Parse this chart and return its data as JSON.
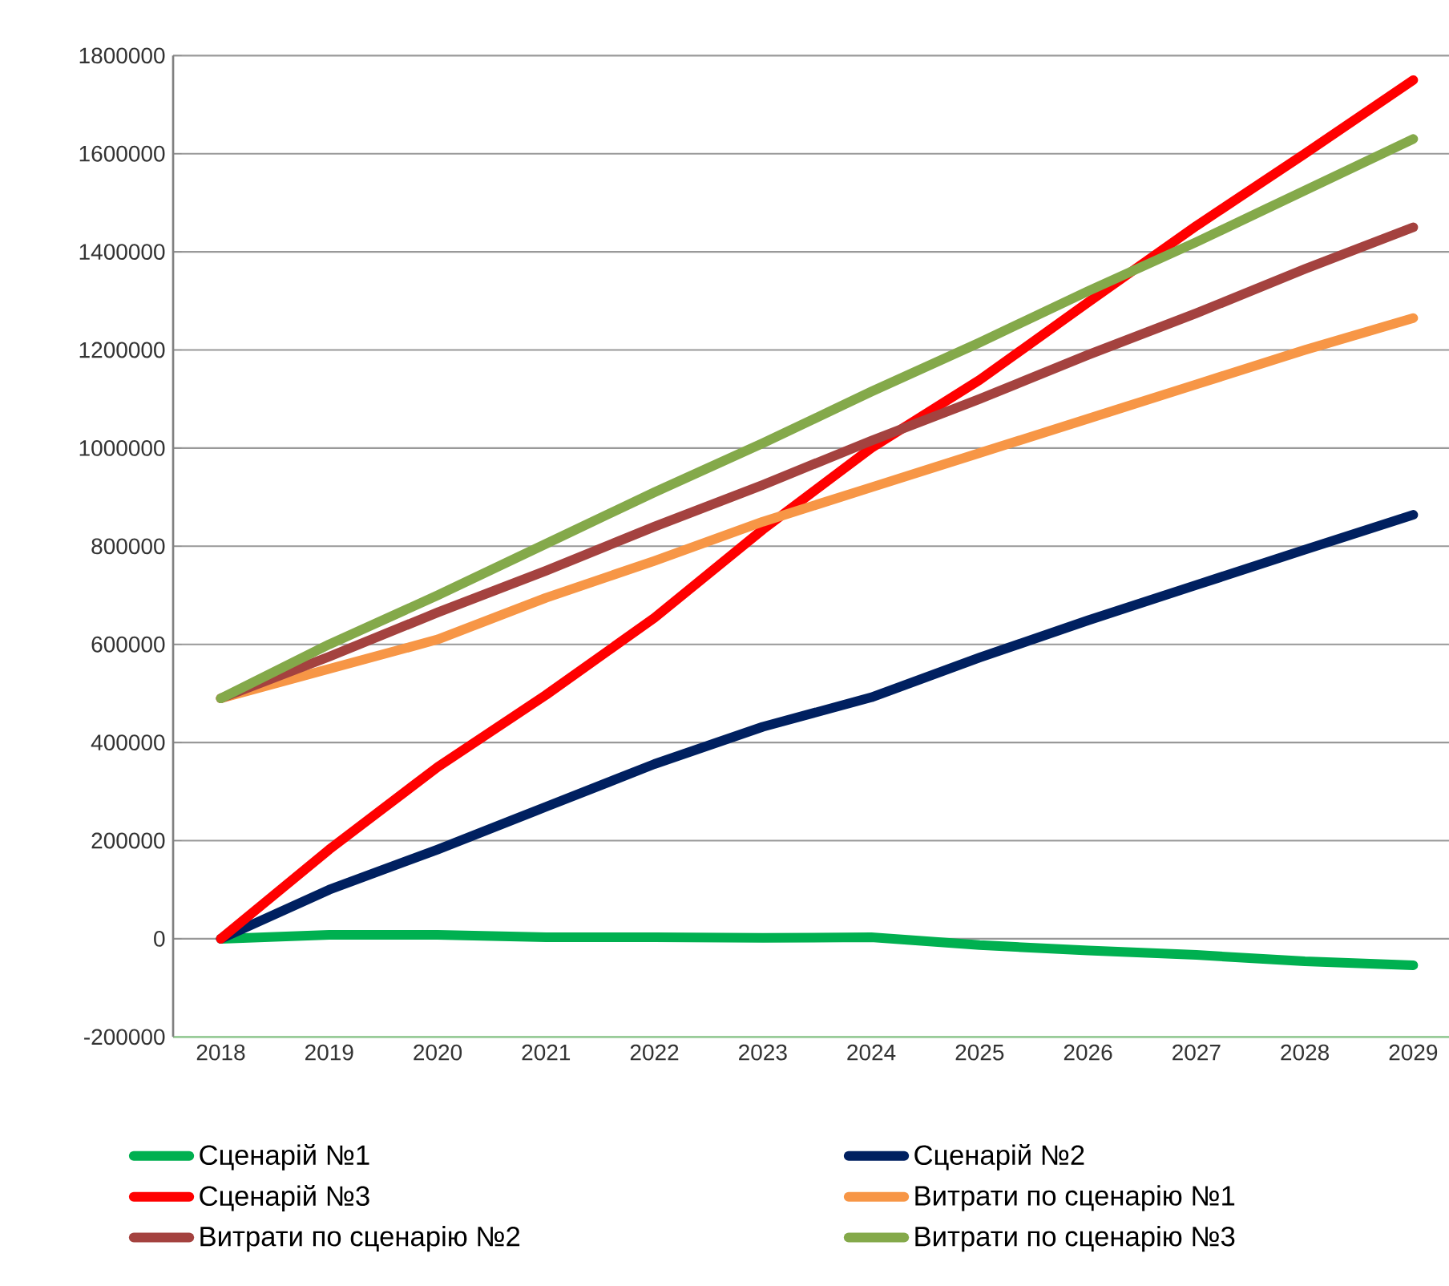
{
  "chart_data": {
    "type": "line",
    "categories": [
      "2018",
      "2019",
      "2020",
      "2021",
      "2022",
      "2023",
      "2024",
      "2025",
      "2026",
      "2027",
      "2028",
      "2029"
    ],
    "series": [
      {
        "name": "Сценарій №1",
        "color": "#00b050",
        "values": [
          0,
          8000,
          8000,
          3000,
          3000,
          2000,
          3000,
          -13000,
          -24000,
          -33000,
          -46000,
          -54000
        ]
      },
      {
        "name": "Сценарій №2",
        "color": "#002060",
        "values": [
          0,
          100000,
          182000,
          269000,
          356000,
          432000,
          492000,
          573000,
          649000,
          721000,
          793000,
          864000
        ]
      },
      {
        "name": "Сценарій №3",
        "color": "#ff0000",
        "values": [
          0,
          182000,
          350000,
          497000,
          654000,
          834000,
          1000000,
          1139000,
          1297000,
          1453000,
          1600000,
          1750000
        ]
      },
      {
        "name": "Витрати по сценарію №1",
        "color": "#f79646",
        "values": [
          490000,
          550000,
          610000,
          695000,
          770000,
          850000,
          920000,
          990000,
          1060000,
          1130000,
          1200000,
          1265000
        ]
      },
      {
        "name": "Витрати по сценарію №2",
        "color": "#a4423f",
        "values": [
          490000,
          575000,
          665000,
          750000,
          840000,
          925000,
          1015000,
          1100000,
          1190000,
          1275000,
          1365000,
          1450000
        ]
      },
      {
        "name": "Витрати по сценарію №3",
        "color": "#84a94a",
        "values": [
          490000,
          600000,
          700000,
          805000,
          910000,
          1010000,
          1115000,
          1215000,
          1320000,
          1420000,
          1525000,
          1630000
        ]
      }
    ],
    "ylim": [
      -200000,
      1800000
    ],
    "yticks": [
      -200000,
      0,
      200000,
      400000,
      600000,
      800000,
      1000000,
      1200000,
      1400000,
      1600000,
      1800000
    ],
    "grid": "y",
    "legend": "bottom",
    "marker": "none",
    "line_style": "solid"
  }
}
